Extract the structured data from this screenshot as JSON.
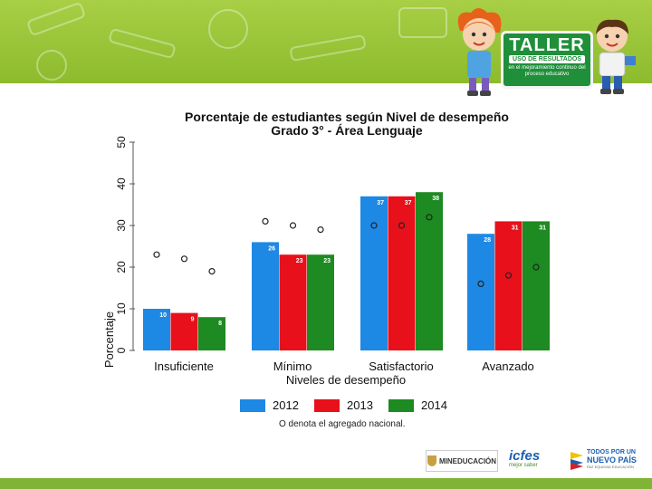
{
  "banner": {
    "title": "TALLER",
    "subtitle": "USO DE RESULTADOS",
    "description": "en el mejoramiento continuo del proceso educativo"
  },
  "chart_data": {
    "type": "bar",
    "title": "Porcentaje de estudiantes según Nivel de desempeño",
    "subtitle": "Grado 3° - Área  Lenguaje",
    "xlabel": "Niveles de desempeño",
    "ylabel": "Porcentaje",
    "ylim": [
      0,
      50
    ],
    "yticks": [
      "0",
      "10",
      "20",
      "30",
      "40",
      "50"
    ],
    "categories": [
      "Insuficiente",
      "Mínimo",
      "Satisfactorio",
      "Avanzado"
    ],
    "series": [
      {
        "name": "2012",
        "color": "#1e88e5",
        "values": [
          10,
          26,
          37,
          28
        ],
        "labels": [
          "10",
          "26",
          "37",
          "28"
        ],
        "national": [
          23,
          31,
          30,
          16
        ]
      },
      {
        "name": "2013",
        "color": "#e8101a",
        "values": [
          9,
          23,
          37,
          31
        ],
        "labels": [
          "9",
          "23",
          "37",
          "31"
        ],
        "national": [
          22,
          30,
          30,
          18
        ]
      },
      {
        "name": "2014",
        "color": "#1d8a22",
        "values": [
          8,
          23,
          38,
          31
        ],
        "labels": [
          "8",
          "23",
          "38",
          "31"
        ],
        "national": [
          19,
          29,
          32,
          20
        ]
      }
    ],
    "legend_position": "bottom",
    "note": "O denota el agregado nacional."
  },
  "footer": {
    "mineducacion": "MINEDUCACIÓN",
    "icfes": "icfes",
    "icfes_tagline": "mejor saber",
    "gov_line1": "TODOS POR UN",
    "gov_line2": "NUEVO PAÍS",
    "gov_line3": "PAZ  EQUIDAD  EDUCACIÓN"
  }
}
